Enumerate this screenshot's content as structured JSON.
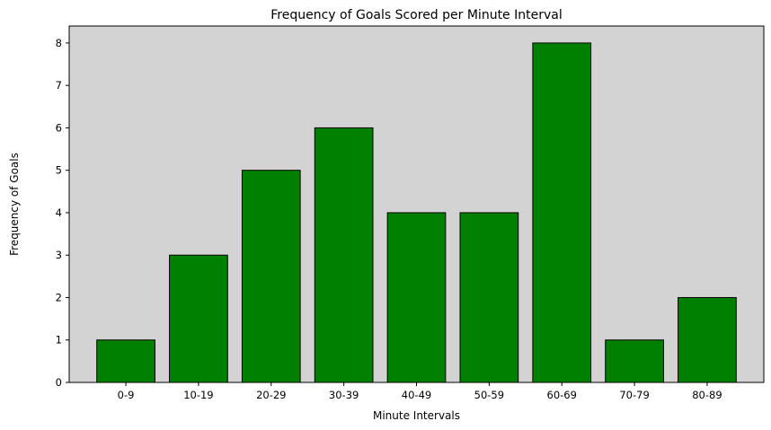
{
  "chart_data": {
    "type": "bar",
    "title": "Frequency of Goals Scored per Minute Interval",
    "xlabel": "Minute Intervals",
    "ylabel": "Frequency of Goals",
    "categories": [
      "0-9",
      "10-19",
      "20-29",
      "30-39",
      "40-49",
      "50-59",
      "60-69",
      "70-79",
      "80-89"
    ],
    "values": [
      1,
      3,
      5,
      6,
      4,
      4,
      8,
      1,
      2
    ],
    "ylim": [
      0,
      8.4
    ],
    "yticks": [
      0,
      1,
      2,
      3,
      4,
      5,
      6,
      7,
      8
    ],
    "grid": false,
    "legend": "none",
    "bar_color": "#008000",
    "bar_edge_color": "#000000",
    "plot_background": "#d3d3d3"
  }
}
